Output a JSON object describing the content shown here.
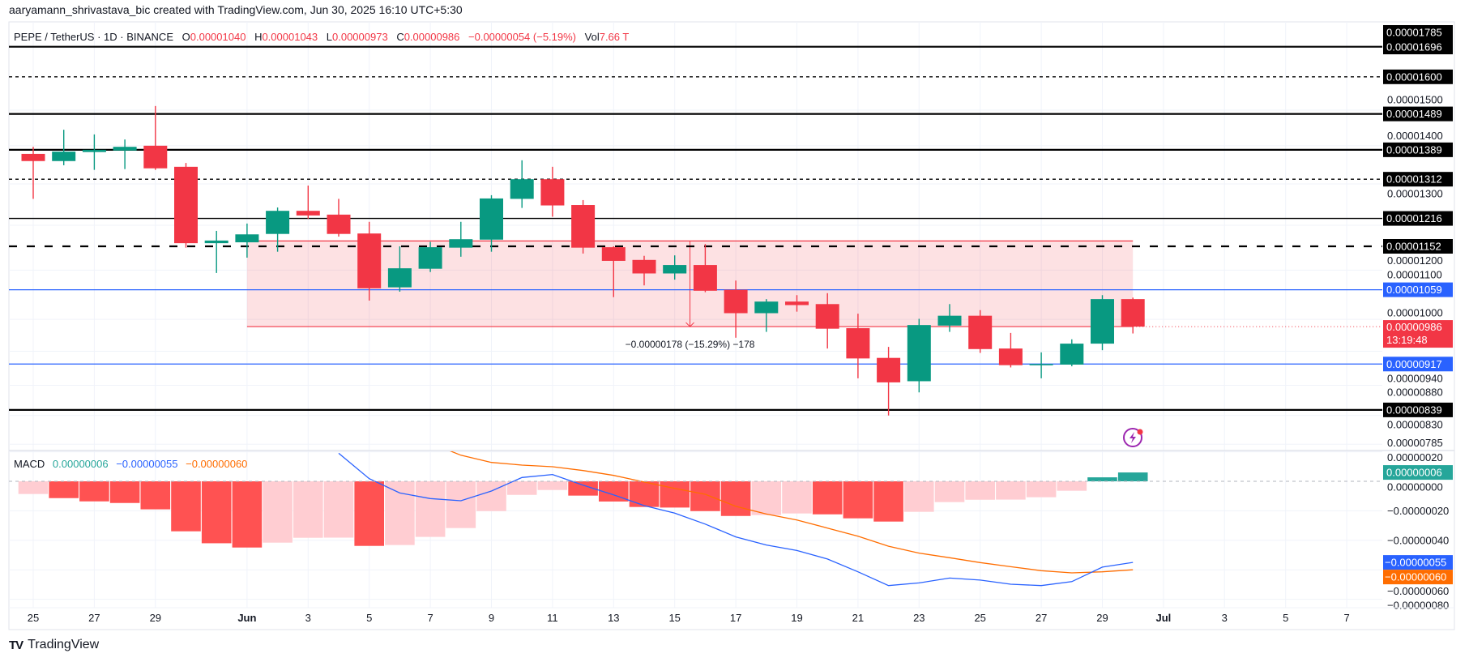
{
  "header": {
    "attribution": "aaryamann_shrivastava_bic created with TradingView.com, Jun 30, 2025 16:10 UTC+5:30"
  },
  "legend": {
    "symbol": "PEPE / TetherUS · 1D · BINANCE",
    "o_label": "O",
    "o": "0.00001040",
    "h_label": "H",
    "h": "0.00001043",
    "l_label": "L",
    "l": "0.00000973",
    "c_label": "C",
    "c": "0.00000986",
    "change": "−0.00000054 (−5.19%)",
    "vol_label": "Vol",
    "vol": "7.66 T"
  },
  "macd_legend": {
    "label": "MACD",
    "histogram": "0.00000006",
    "macd": "−0.00000055",
    "signal": "−0.00000060"
  },
  "colors": {
    "up": "#089981",
    "down": "#F23645",
    "hist_down_strong": "#FF5252",
    "hist_down_weak": "#FFCDD2",
    "hist_up": "#26A69A",
    "macd_line": "#2962FF",
    "signal_line": "#FF6D00",
    "support_line": "#2962FF",
    "level_line": "#000000",
    "range_fill": "#F23645"
  },
  "price_axis": {
    "scale": "log",
    "ticks": [
      {
        "value": 1.5e-05,
        "label": "0.00001500"
      },
      {
        "value": 1.4e-05,
        "label": "0.00001400"
      },
      {
        "value": 1.3e-05,
        "label": "0.00001300"
      },
      {
        "value": 1.2e-05,
        "label": "0.00001200"
      },
      {
        "value": 1.1e-05,
        "label": "0.00001100"
      },
      {
        "value": 1e-05,
        "label": "0.00001000"
      },
      {
        "value": 9.4e-06,
        "label": "0.00000940"
      },
      {
        "value": 8.8e-06,
        "label": "0.00000880"
      },
      {
        "value": 8.3e-06,
        "label": "0.00000830"
      },
      {
        "value": 7.85e-06,
        "label": "0.00000785"
      }
    ],
    "levels": [
      {
        "value": 1.785e-05,
        "label": "0.00001785",
        "line": "none",
        "color": "#000000"
      },
      {
        "value": 1.696e-05,
        "label": "0.00001696",
        "line": "solid-thick",
        "color": "#000000"
      },
      {
        "value": 1.6e-05,
        "label": "0.00001600",
        "line": "dashed-thin",
        "color": "#000000"
      },
      {
        "value": 1.489e-05,
        "label": "0.00001489",
        "line": "solid-thick",
        "color": "#000000"
      },
      {
        "value": 1.389e-05,
        "label": "0.00001389",
        "line": "solid-thick",
        "color": "#000000"
      },
      {
        "value": 1.312e-05,
        "label": "0.00001312",
        "line": "dashed-thin",
        "color": "#000000"
      },
      {
        "value": 1.216e-05,
        "label": "0.00001216",
        "line": "solid-thin",
        "color": "#000000"
      },
      {
        "value": 1.152e-05,
        "label": "0.00001152",
        "line": "dashed-thick",
        "color": "#000000"
      },
      {
        "value": 1.059e-05,
        "label": "0.00001059",
        "line": "solid-thin",
        "color": "#2962FF"
      },
      {
        "value": 9.17e-06,
        "label": "0.00000917",
        "line": "solid-thin",
        "color": "#2962FF"
      },
      {
        "value": 8.39e-06,
        "label": "0.00000839",
        "line": "solid-thick",
        "color": "#000000"
      }
    ],
    "current": {
      "value": 9.86e-06,
      "label": "0.00000986",
      "countdown": "13:19:48"
    }
  },
  "x_axis": {
    "ticks": [
      {
        "date": "2025-05-25",
        "label": "25"
      },
      {
        "date": "2025-05-27",
        "label": "27"
      },
      {
        "date": "2025-05-29",
        "label": "29"
      },
      {
        "date": "2025-06-01",
        "label": "Jun",
        "bold": true
      },
      {
        "date": "2025-06-03",
        "label": "3"
      },
      {
        "date": "2025-06-05",
        "label": "5"
      },
      {
        "date": "2025-06-07",
        "label": "7"
      },
      {
        "date": "2025-06-09",
        "label": "9"
      },
      {
        "date": "2025-06-11",
        "label": "11"
      },
      {
        "date": "2025-06-13",
        "label": "13"
      },
      {
        "date": "2025-06-15",
        "label": "15"
      },
      {
        "date": "2025-06-17",
        "label": "17"
      },
      {
        "date": "2025-06-19",
        "label": "19"
      },
      {
        "date": "2025-06-21",
        "label": "21"
      },
      {
        "date": "2025-06-23",
        "label": "23"
      },
      {
        "date": "2025-06-25",
        "label": "25"
      },
      {
        "date": "2025-06-27",
        "label": "27"
      },
      {
        "date": "2025-06-29",
        "label": "29"
      },
      {
        "date": "2025-07-01",
        "label": "Jul",
        "bold": true
      },
      {
        "date": "2025-07-03",
        "label": "3"
      },
      {
        "date": "2025-07-05",
        "label": "5"
      },
      {
        "date": "2025-07-07",
        "label": "7"
      }
    ]
  },
  "measure": {
    "from_date": "2025-06-01",
    "to_date": "2025-06-30",
    "from_value": 1.164e-05,
    "to_value": 9.86e-06,
    "label": "−0.00000178 (−15.29%) −178"
  },
  "macd_axis": {
    "ticks": [
      {
        "value": 2e-07,
        "label": "0.00000020"
      },
      {
        "value": 0,
        "label": "0.00000000"
      },
      {
        "value": -2e-07,
        "label": "−0.00000020"
      },
      {
        "value": -4e-07,
        "label": "−0.00000040"
      },
      {
        "value": -6e-07,
        "label": "−0.00000060"
      },
      {
        "value": -8e-07,
        "label": "−0.00000080"
      }
    ]
  },
  "alert_icon": "lightning-icon",
  "footer": {
    "logo": "TradingView"
  },
  "chart_data": [
    {
      "type": "candlestick",
      "columns": [
        "date",
        "open",
        "high",
        "low",
        "close"
      ],
      "candles": [
        [
          "2025-05-25",
          1.378e-05,
          1.397e-05,
          1.263e-05,
          1.359e-05
        ],
        [
          "2025-05-26",
          1.359e-05,
          1.444e-05,
          1.348e-05,
          1.384e-05
        ],
        [
          "2025-05-27",
          1.383e-05,
          1.431e-05,
          1.336e-05,
          1.389e-05
        ],
        [
          "2025-05-28",
          1.387e-05,
          1.417e-05,
          1.338e-05,
          1.397e-05
        ],
        [
          "2025-05-29",
          1.4e-05,
          1.512e-05,
          1.336e-05,
          1.34e-05
        ],
        [
          "2025-05-30",
          1.344e-05,
          1.354e-05,
          1.149e-05,
          1.159e-05
        ],
        [
          "2025-05-31",
          1.159e-05,
          1.187e-05,
          1.094e-05,
          1.165e-05
        ],
        [
          "2025-06-01",
          1.161e-05,
          1.204e-05,
          1.127e-05,
          1.179e-05
        ],
        [
          "2025-06-02",
          1.18e-05,
          1.242e-05,
          1.14e-05,
          1.234e-05
        ],
        [
          "2025-06-03",
          1.234e-05,
          1.296e-05,
          1.215e-05,
          1.223e-05
        ],
        [
          "2025-06-04",
          1.225e-05,
          1.263e-05,
          1.174e-05,
          1.18e-05
        ],
        [
          "2025-06-05",
          1.181e-05,
          1.208e-05,
          1.037e-05,
          1.062e-05
        ],
        [
          "2025-06-06",
          1.064e-05,
          1.152e-05,
          1.055e-05,
          1.104e-05
        ],
        [
          "2025-06-07",
          1.103e-05,
          1.162e-05,
          1.096e-05,
          1.15e-05
        ],
        [
          "2025-06-08",
          1.149e-05,
          1.208e-05,
          1.129e-05,
          1.168e-05
        ],
        [
          "2025-06-09",
          1.167e-05,
          1.272e-05,
          1.14e-05,
          1.264e-05
        ],
        [
          "2025-06-10",
          1.263e-05,
          1.361e-05,
          1.241e-05,
          1.312e-05
        ],
        [
          "2025-06-11",
          1.312e-05,
          1.344e-05,
          1.22e-05,
          1.247e-05
        ],
        [
          "2025-06-12",
          1.248e-05,
          1.26e-05,
          1.136e-05,
          1.149e-05
        ],
        [
          "2025-06-13",
          1.15e-05,
          1.152e-05,
          1.044e-05,
          1.12e-05
        ],
        [
          "2025-06-14",
          1.122e-05,
          1.131e-05,
          1.068e-05,
          1.093e-05
        ],
        [
          "2025-06-15",
          1.093e-05,
          1.132e-05,
          1.08e-05,
          1.111e-05
        ],
        [
          "2025-06-16",
          1.111e-05,
          1.157e-05,
          1.054e-05,
          1.057e-05
        ],
        [
          "2025-06-17",
          1.059e-05,
          1.078e-05,
          9.65e-06,
          1.012e-05
        ],
        [
          "2025-06-18",
          1.012e-05,
          1.04e-05,
          9.76e-06,
          1.035e-05
        ],
        [
          "2025-06-19",
          1.035e-05,
          1.048e-05,
          1.015e-05,
          1.028e-05
        ],
        [
          "2025-06-20",
          1.03e-05,
          1.052e-05,
          9.45e-06,
          9.82e-06
        ],
        [
          "2025-06-21",
          9.83e-06,
          1.011e-05,
          8.92e-06,
          9.27e-06
        ],
        [
          "2025-06-22",
          9.28e-06,
          9.48e-06,
          8.3e-06,
          8.85e-06
        ],
        [
          "2025-06-23",
          8.87e-06,
          1.001e-05,
          8.68e-06,
          9.89e-06
        ],
        [
          "2025-06-24",
          9.88e-06,
          1.03e-05,
          9.76e-06,
          1.007e-05
        ],
        [
          "2025-06-25",
          1.007e-05,
          1.018e-05,
          9.37e-06,
          9.44e-06
        ],
        [
          "2025-06-26",
          9.45e-06,
          9.74e-06,
          9.11e-06,
          9.15e-06
        ],
        [
          "2025-06-27",
          9.15e-06,
          9.38e-06,
          8.92e-06,
          9.17e-06
        ],
        [
          "2025-06-28",
          9.16e-06,
          9.62e-06,
          9.13e-06,
          9.54e-06
        ],
        [
          "2025-06-29",
          9.54e-06,
          1.048e-05,
          9.42e-06,
          1.04e-05
        ],
        [
          "2025-06-30",
          1.04e-05,
          1.043e-05,
          9.73e-06,
          9.86e-06
        ]
      ]
    },
    {
      "type": "bar+line",
      "title": "MACD",
      "start_date": "2025-05-25",
      "histogram": [
        -8.6e-08,
        -1.14e-07,
        -1.36e-07,
        -1.47e-07,
        -1.9e-07,
        -3.39e-07,
        -4.2e-07,
        -4.49e-07,
        -4.16e-07,
        -3.83e-07,
        -3.82e-07,
        -4.38e-07,
        -4.32e-07,
        -3.77e-07,
        -3.17e-07,
        -2.02e-07,
        -9.2e-08,
        -5.9e-08,
        -9.7e-08,
        -1.37e-07,
        -1.74e-07,
        -1.78e-07,
        -2.02e-07,
        -2.35e-07,
        -2.29e-07,
        -2.18e-07,
        -2.24e-07,
        -2.51e-07,
        -2.73e-07,
        -2.07e-07,
        -1.41e-07,
        -1.25e-07,
        -1.24e-07,
        -1.08e-07,
        -6.4e-08,
        2.7e-08,
        6e-08
      ],
      "macd": [
        null,
        null,
        null,
        null,
        null,
        null,
        null,
        null,
        null,
        null,
        1.9e-07,
        1.8e-08,
        -7.9e-08,
        -1.17e-07,
        -1.32e-07,
        -6.6e-08,
        2.6e-08,
        4.6e-08,
        -2.6e-08,
        -9.2e-08,
        -1.65e-07,
        -2.16e-07,
        -2.9e-07,
        -3.77e-07,
        -4.32e-07,
        -4.69e-07,
        -5.27e-07,
        -6.14e-07,
        -7.07e-07,
        -6.89e-07,
        -6.56e-07,
        -6.7e-07,
        -6.98e-07,
        -7.07e-07,
        -6.8e-07,
        -5.82e-07,
        -5.5e-07
      ],
      "signal": [
        null,
        null,
        null,
        null,
        null,
        null,
        null,
        null,
        null,
        null,
        5.73e-07,
        4.56e-07,
        3.53e-07,
        2.6e-07,
        1.77e-07,
        1.28e-07,
        1.1e-07,
        9.9e-08,
        7.3e-08,
        4e-08,
        -5e-09,
        -4.8e-08,
        -8.8e-08,
        -1.7e-07,
        -2.22e-07,
        -2.62e-07,
        -3.17e-07,
        -3.72e-07,
        -4.4e-07,
        -4.87e-07,
        -5.18e-07,
        -5.51e-07,
        -5.79e-07,
        -6.06e-07,
        -6.21e-07,
        -6.14e-07,
        -6e-07
      ],
      "ylim": [
        -8e-07,
        2e-07
      ]
    }
  ]
}
